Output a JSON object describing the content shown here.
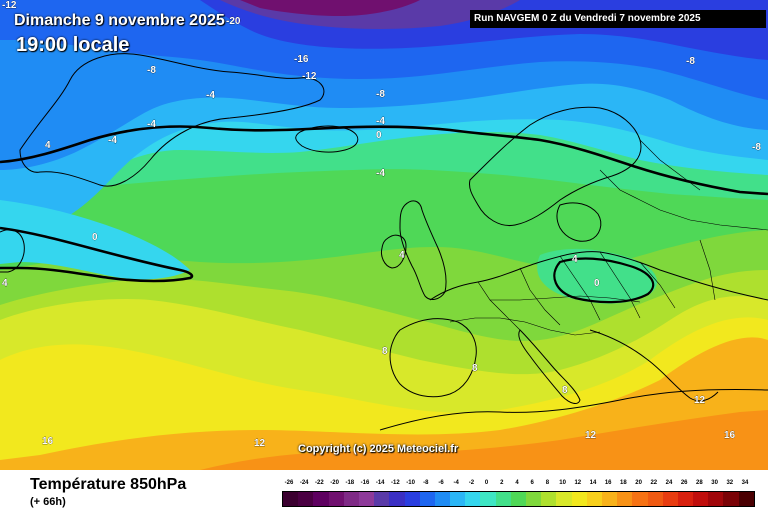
{
  "header": {
    "date": "Dimanche 9 novembre 2025",
    "time": "19:00 locale",
    "run_info": "Run NAVGEM 0 Z du Vendredi 7 novembre 2025"
  },
  "copyright": "Copyright (c) 2025 Meteociel.fr",
  "footer": {
    "variable": "Température 850hPa",
    "lead_time": "(+ 66h)"
  },
  "scale": {
    "values": [
      "-26",
      "-24",
      "-22",
      "-20",
      "-18",
      "-16",
      "-14",
      "-12",
      "-10",
      "-8",
      "-6",
      "-4",
      "-2",
      "0",
      "2",
      "4",
      "6",
      "8",
      "10",
      "12",
      "14",
      "16",
      "18",
      "20",
      "22",
      "24",
      "26",
      "28",
      "30",
      "32",
      "34"
    ],
    "colors": [
      "#3b0030",
      "#4a0042",
      "#5e0060",
      "#70106f",
      "#7f2a86",
      "#8e3a9a",
      "#5a3aa8",
      "#3b2fc4",
      "#2a3ee0",
      "#1e66f0",
      "#1f8cf4",
      "#2bb6f6",
      "#35d6ee",
      "#3ee6c4",
      "#42e08a",
      "#4fd857",
      "#7fd83c",
      "#aee02e",
      "#d8e82a",
      "#f2e81e",
      "#f8d01c",
      "#f8b21a",
      "#f89216",
      "#f67214",
      "#f05a12",
      "#e83c10",
      "#d8200e",
      "#c00e0c",
      "#a0060a",
      "#7a0206",
      "#4a0002"
    ]
  },
  "contour_labels": [
    {
      "id": "isotherm-label-12-topleft",
      "text": "-12",
      "color": "white"
    },
    {
      "id": "isotherm-label-20-top",
      "text": "-20",
      "color": "white"
    },
    {
      "id": "isotherm-label-16",
      "text": "-16",
      "color": "white"
    },
    {
      "id": "isotherm-label-12-mid",
      "text": "-12",
      "color": "white"
    },
    {
      "id": "isotherm-label-8-west",
      "text": "-8",
      "color": "white"
    },
    {
      "id": "isotherm-label-4-west",
      "text": "-4",
      "color": "white"
    },
    {
      "id": "isotherm-label-8-mid",
      "text": "-8",
      "color": "white"
    },
    {
      "id": "isotherm-label-4-greenland",
      "text": "-4",
      "color": "white"
    },
    {
      "id": "isotherm-label-4-atlantic",
      "text": "-4",
      "color": "white"
    },
    {
      "id": "isotherm-label-4-coast",
      "text": "4",
      "color": "white"
    },
    {
      "id": "isotherm-label-4-north",
      "text": "-4",
      "color": "white"
    },
    {
      "id": "isotherm-label-0-north",
      "text": "0",
      "color": "white"
    },
    {
      "id": "isotherm-label-4-norway",
      "text": "-4",
      "color": "white"
    },
    {
      "id": "isotherm-label-8-east",
      "text": "-8",
      "color": "white"
    },
    {
      "id": "isotherm-label-8-farright",
      "text": "-8",
      "color": "white"
    },
    {
      "id": "isotherm-label-0-west",
      "text": "0",
      "color": "white"
    },
    {
      "id": "isotherm-label-4-westedge",
      "text": "4",
      "color": "white"
    },
    {
      "id": "isotherm-label-4-ireland",
      "text": "4",
      "color": "white"
    },
    {
      "id": "isotherm-label-4-germany",
      "text": "4",
      "color": "white"
    },
    {
      "id": "isotherm-label-0-poland",
      "text": "0",
      "color": "white"
    },
    {
      "id": "isotherm-label-8-france",
      "text": "8",
      "color": "white"
    },
    {
      "id": "isotherm-label-8-italy",
      "text": "8",
      "color": "white"
    },
    {
      "id": "isotherm-label-8-balkans",
      "text": "8",
      "color": "white"
    },
    {
      "id": "isotherm-label-12-greece",
      "text": "12",
      "color": "white"
    },
    {
      "id": "isotherm-label-12-africa",
      "text": "12",
      "color": "white"
    },
    {
      "id": "isotherm-label-12-atlantic",
      "text": "12",
      "color": "white"
    },
    {
      "id": "isotherm-label-16-atlantic",
      "text": "16",
      "color": "white"
    },
    {
      "id": "isotherm-label-16-east",
      "text": "16",
      "color": "white"
    }
  ]
}
